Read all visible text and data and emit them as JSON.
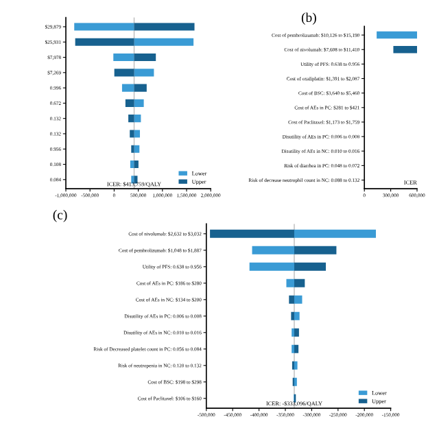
{
  "chart_data": [
    {
      "type": "bar",
      "orientation": "horizontal",
      "categories": [
        "$29,879",
        "$25,931",
        "$7,978",
        "$7,269",
        "0.996",
        "0.672",
        "0.132",
        "0.132",
        "0.956",
        "0.108",
        "0.084"
      ],
      "series": [
        {
          "name": "Lower",
          "color": "#3a9bd5",
          "base": [
            413759,
            413759,
            413759,
            413759,
            413759,
            413759,
            413759,
            413759,
            413759,
            413759,
            413759
          ],
          "values": [
            -1240000,
            1230000,
            -430000,
            410000,
            -250000,
            200000,
            140000,
            120000,
            110000,
            -80000,
            -60000
          ]
        },
        {
          "name": "Upper",
          "color": "#17618f",
          "base": [
            413759,
            413759,
            413759,
            413759,
            413759,
            413759,
            413759,
            413759,
            413759,
            413759,
            413759
          ],
          "values": [
            1250000,
            -1220000,
            450000,
            -410000,
            260000,
            -180000,
            -120000,
            -90000,
            -60000,
            90000,
            70000
          ]
        }
      ],
      "xlim": [
        -1000000,
        2000000
      ],
      "xticks": [
        {
          "value": -1000000,
          "label": "-1,000,000"
        },
        {
          "value": -500000,
          "label": "-500,000"
        },
        0,
        {
          "value": 500000,
          "label": "500,000"
        },
        {
          "value": 1000000,
          "label": "1,000,000"
        },
        {
          "value": 1500000,
          "label": "1,500,000"
        },
        {
          "value": 2000000,
          "label": "2,000,000"
        }
      ],
      "ref_lines": [
        {
          "axis": "x",
          "value": 413759,
          "label": "ICER: $413,759/QALY",
          "color": "#bbbbbb"
        }
      ],
      "legend": "bottom right"
    },
    {
      "type": "bar",
      "orientation": "horizontal",
      "title": "(b)",
      "categories": [
        "Cost of pembrolizumab: $10,126 to $15,190",
        "Cost of nivolumab: $7,608 to $11,410",
        "Utility of PFS: 0.638 to 0.956",
        "Cost of oxaliplatin: $1,391 to $2,087",
        "Cost of BSC: $3,640 to $5,460",
        "Cost of AEs in PC: $281 to $421",
        "Cost of Paclitaxel: $1,173 to $1,759",
        "Disutility of AEs in PC: 0.006 to 0.008",
        "Disutility of AEs in NC: 0.010 to 0.016",
        "Risk of diarrhea in PC: 0.048 to 0.072",
        "Risk of decrease neutrophil count in NC: 0.088 to 0.132"
      ],
      "series": [
        {
          "color": "#3a9bd5",
          "base": [
            140000,
            null,
            null,
            null,
            null,
            null,
            null,
            null,
            null,
            null,
            null
          ],
          "values": [
            460000,
            null,
            null,
            null,
            null,
            null,
            null,
            null,
            null,
            null,
            null
          ]
        },
        {
          "color": "#17618f",
          "base": [
            null,
            330000,
            null,
            null,
            null,
            null,
            null,
            null,
            null,
            null,
            null
          ],
          "values": [
            null,
            270000,
            null,
            null,
            null,
            null,
            null,
            null,
            null,
            null,
            null
          ]
        }
      ],
      "xlim": [
        0,
        600000
      ],
      "xticks": [
        0,
        {
          "value": 300000,
          "label": "300,000"
        },
        {
          "value": 600000,
          "label": "600,000"
        }
      ],
      "annotations": [
        "ICER"
      ]
    },
    {
      "type": "bar",
      "orientation": "horizontal",
      "title": "(c)",
      "categories": [
        "Cost of nivolumab: $2,632 to $3,032",
        "Cost of pembrolizumab: $1,048 to $1,887",
        "Utility of PFS: 0.638 to 0.956",
        "Cost of AEs in PC: $186 to $280",
        "Cost of AEs in NC: $134 to $200",
        "Disutility of AEs in PC: 0.006 to 0.008",
        "Disutility of AEs in NC: 0.010 to 0.016",
        "Risk of Decreased platelet count in PC: 0.056 to 0.084",
        "Risk of neutropenia in NC: 0.120 to 0.132",
        "Cost of BSC: $198 to $298",
        "Cost of Paclitaxel: $106 to $160"
      ],
      "series": [
        {
          "name": "Lower",
          "color": "#3a9bd5",
          "base": [
            -333096,
            -333096,
            -333096,
            -333096,
            -333096,
            -333096,
            -333096,
            -333096,
            -333096,
            -333096,
            -333096
          ],
          "values": [
            155000,
            -80000,
            -85000,
            -15000,
            15000,
            10000,
            -5000,
            -5000,
            6000,
            5000,
            -1000
          ]
        },
        {
          "name": "Upper",
          "color": "#17618f",
          "base": [
            -333096,
            -333096,
            -333096,
            -333096,
            -333096,
            -333096,
            -333096,
            -333096,
            -333096,
            -333096,
            -333096
          ],
          "values": [
            -160000,
            80000,
            60000,
            20000,
            -10000,
            -6000,
            9000,
            8000,
            -4000,
            -3000,
            3000
          ]
        }
      ],
      "xlim": [
        -500000,
        -150000
      ],
      "xticks": [
        {
          "value": -500000,
          "label": "-500,000"
        },
        {
          "value": -450000,
          "label": "-450,000"
        },
        {
          "value": -400000,
          "label": "-400,000"
        },
        {
          "value": -350000,
          "label": "-350,000"
        },
        {
          "value": -300000,
          "label": "-300,000"
        },
        {
          "value": -250000,
          "label": "-250,000"
        },
        {
          "value": -200000,
          "label": "-200,000"
        },
        {
          "value": -150000,
          "label": "-150,000"
        }
      ],
      "ref_lines": [
        {
          "axis": "x",
          "value": -333096,
          "label": "ICER: -$333,096/QALY",
          "color": "#bbbbbb"
        }
      ],
      "legend": "bottom right"
    }
  ]
}
